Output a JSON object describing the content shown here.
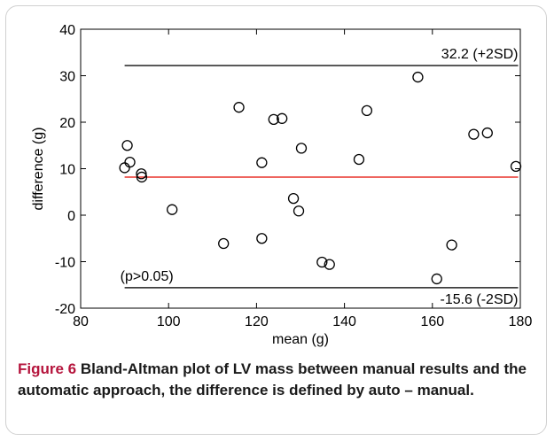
{
  "caption": {
    "label": "Figure 6",
    "text": "Bland-Altman plot of LV mass between manual results and the automatic approach, the difference is defined by auto – manual."
  },
  "chart_data": {
    "type": "scatter",
    "xlabel": "mean (g)",
    "ylabel": "difference (g)",
    "xlim": [
      80,
      180
    ],
    "ylim": [
      -20,
      40
    ],
    "xticks": [
      80,
      100,
      120,
      140,
      160,
      180
    ],
    "yticks": [
      -20,
      -10,
      0,
      10,
      20,
      30,
      40
    ],
    "points": [
      {
        "x": 90.0,
        "y": 10.2
      },
      {
        "x": 90.6,
        "y": 15.0
      },
      {
        "x": 91.2,
        "y": 11.4
      },
      {
        "x": 93.8,
        "y": 8.9
      },
      {
        "x": 93.9,
        "y": 8.2
      },
      {
        "x": 100.8,
        "y": 1.2
      },
      {
        "x": 112.5,
        "y": -6.1
      },
      {
        "x": 116.0,
        "y": 23.2
      },
      {
        "x": 121.2,
        "y": 11.3
      },
      {
        "x": 121.2,
        "y": -5.0
      },
      {
        "x": 123.9,
        "y": 20.6
      },
      {
        "x": 125.8,
        "y": 20.8
      },
      {
        "x": 128.4,
        "y": 3.6
      },
      {
        "x": 129.6,
        "y": 0.9
      },
      {
        "x": 130.2,
        "y": 14.4
      },
      {
        "x": 134.9,
        "y": -10.1
      },
      {
        "x": 136.6,
        "y": -10.6
      },
      {
        "x": 143.3,
        "y": 12.0
      },
      {
        "x": 145.1,
        "y": 22.5
      },
      {
        "x": 156.7,
        "y": 29.7
      },
      {
        "x": 161.0,
        "y": -13.7
      },
      {
        "x": 164.4,
        "y": -6.4
      },
      {
        "x": 169.4,
        "y": 17.4
      },
      {
        "x": 172.5,
        "y": 17.7
      },
      {
        "x": 179.0,
        "y": 10.5
      }
    ],
    "lines": [
      {
        "y": 32.2,
        "label": "32.2 (+2SD)",
        "color": "#222222"
      },
      {
        "y": 8.2,
        "label": "",
        "color": "#e8322a"
      },
      {
        "y": -15.6,
        "label": "-15.6 (-2SD)",
        "color": "#222222"
      }
    ],
    "annotations": [
      {
        "text": "(p>0.05)"
      }
    ],
    "grid": false
  }
}
